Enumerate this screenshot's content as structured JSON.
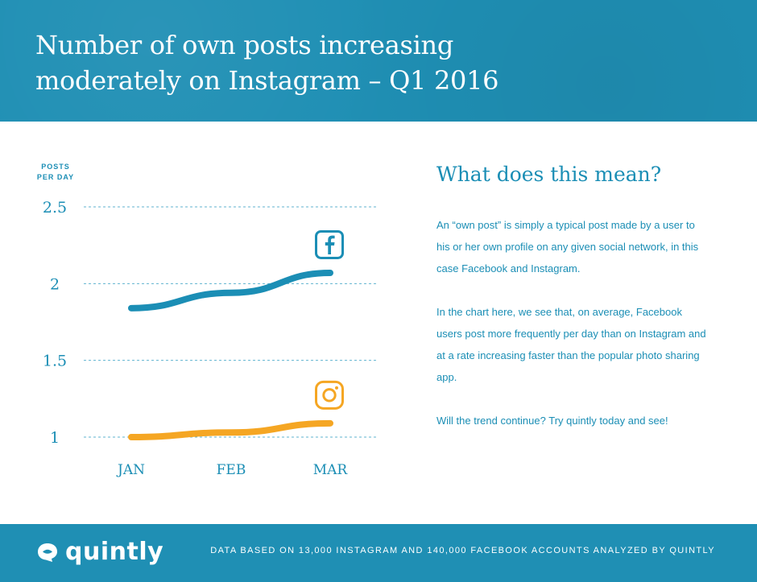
{
  "header": {
    "title": "Number of own posts increasing moderately on Instagram – Q1 2016"
  },
  "chart_data": {
    "type": "line",
    "title": "Number of own posts increasing moderately on Instagram – Q1 2016",
    "ylabel": "POSTS PER DAY",
    "xlabel": "",
    "categories": [
      "JAN",
      "FEB",
      "MAR"
    ],
    "yticks": [
      "2.5",
      "2",
      "1.5",
      "1"
    ],
    "ytick_values": [
      2.5,
      2,
      1.5,
      1
    ],
    "ylim": [
      1,
      2.5
    ],
    "grid": true,
    "series": [
      {
        "name": "Facebook",
        "icon": "facebook-icon",
        "color": "#1b8eb5",
        "values": [
          1.84,
          1.94,
          2.07
        ]
      },
      {
        "name": "Instagram",
        "icon": "instagram-icon",
        "color": "#f5a623",
        "values": [
          1.0,
          1.03,
          1.09
        ]
      }
    ]
  },
  "side": {
    "title": "What does this mean?",
    "p1": "An “own post” is simply a typical post made by a user to his or her own profile on any given social network, in this case Facebook and Instagram.",
    "p2": "In the chart here, we see that, on average, Facebook users post more frequently per day than on Instagram and at a rate increasing faster than the popular photo sharing app.",
    "p3": "Will the trend continue? Try quintly today and see!"
  },
  "footer": {
    "brand": "quintly",
    "note": "DATA BASED ON 13,000 INSTAGRAM AND 140,000 FACEBOOK ACCOUNTS ANALYZED BY QUINTLY"
  },
  "colors": {
    "brand_blue": "#1f8fb4",
    "accent_orange": "#f5a623",
    "text_blue": "#1b8eb5"
  }
}
